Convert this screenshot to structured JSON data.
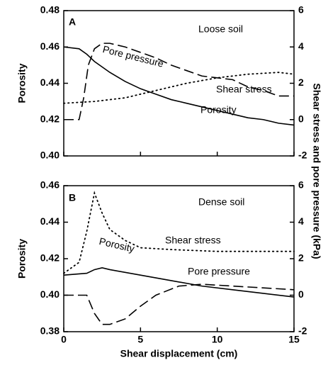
{
  "chart_data": [
    {
      "type": "line",
      "xlim": [
        0,
        15
      ],
      "ylim": [
        0.4,
        0.48
      ],
      "yticks": [
        {
          "value": 0.4,
          "label": "0.40"
        },
        0.42,
        0.44,
        0.46,
        0.48
      ],
      "y2lim": [
        -2,
        6
      ],
      "y2ticks": [
        -2,
        0,
        2,
        4,
        6
      ],
      "ylabel": "Porosity",
      "y2label": "Shear stress and pore pressure (kPa)",
      "annotations": [
        "A",
        "Loose soil",
        "Pore pressure",
        "Shear stress",
        "Porosity"
      ],
      "series": [
        {
          "name": "Porosity",
          "color": "#000000",
          "style": "solid",
          "x": [
            0,
            1,
            1.5,
            2,
            3,
            4,
            5,
            6,
            7,
            8,
            9,
            10,
            11,
            12,
            13,
            14,
            15
          ],
          "values": [
            0.46,
            0.459,
            0.456,
            0.452,
            0.446,
            0.441,
            0.437,
            0.434,
            0.431,
            0.429,
            0.427,
            0.425,
            0.423,
            0.421,
            0.42,
            0.418,
            0.417
          ]
        },
        {
          "name": "Pore pressure",
          "color": "#000000",
          "style": "dashed",
          "axis": "y2",
          "x": [
            0,
            1,
            1.3,
            1.6,
            2,
            2.5,
            3,
            4,
            5,
            6,
            7,
            8,
            9,
            10,
            11,
            12,
            13,
            14,
            15
          ],
          "values": [
            0,
            0,
            1.2,
            3,
            3.9,
            4.2,
            4.2,
            4.0,
            3.7,
            3.4,
            3.0,
            2.7,
            2.4,
            2.3,
            2.2,
            1.8,
            1.6,
            1.3,
            1.3
          ]
        },
        {
          "name": "Shear stress",
          "color": "#000000",
          "style": "dotted",
          "axis": "y2",
          "x": [
            0,
            2,
            4,
            6,
            8,
            10,
            12,
            14,
            15
          ],
          "values": [
            0.9,
            1.0,
            1.2,
            1.6,
            2.0,
            2.3,
            2.5,
            2.6,
            2.5
          ]
        }
      ]
    },
    {
      "type": "line",
      "xlim": [
        0,
        15
      ],
      "xticks": [
        0,
        5,
        10,
        15
      ],
      "xlabel": "Shear displacement (cm)",
      "ylim": [
        0.38,
        0.46
      ],
      "yticks": [
        0.38,
        {
          "value": 0.4,
          "label": "0.40"
        },
        0.42,
        0.44,
        0.46
      ],
      "y2lim": [
        -2,
        6
      ],
      "y2ticks": [
        -2,
        0,
        2,
        4,
        6
      ],
      "ylabel": "Porosity",
      "annotations": [
        "B",
        "Dense soil",
        "Shear stress",
        "Porosity",
        "Pore pressure"
      ],
      "series": [
        {
          "name": "Shear stress",
          "color": "#000000",
          "style": "dotted",
          "axis": "y2",
          "x": [
            0,
            1,
            1.5,
            2,
            2.5,
            3,
            4,
            5,
            7,
            10,
            12,
            15
          ],
          "values": [
            1.2,
            1.8,
            3.5,
            5.6,
            4.5,
            3.6,
            3.0,
            2.6,
            2.5,
            2.4,
            2.4,
            2.4
          ]
        },
        {
          "name": "Porosity",
          "color": "#000000",
          "style": "solid",
          "x": [
            0,
            1.5,
            2,
            2.5,
            3,
            5,
            7,
            9,
            11,
            13,
            15
          ],
          "values": [
            0.411,
            0.412,
            0.414,
            0.415,
            0.414,
            0.411,
            0.408,
            0.405,
            0.403,
            0.401,
            0.399
          ]
        },
        {
          "name": "Pore pressure",
          "color": "#000000",
          "style": "dashed",
          "axis": "y2",
          "x": [
            0,
            1.5,
            2,
            2.5,
            3,
            4,
            5,
            6,
            7.5,
            9,
            11,
            13,
            15
          ],
          "values": [
            0,
            0,
            -1.0,
            -1.6,
            -1.6,
            -1.3,
            -0.6,
            0,
            0.5,
            0.6,
            0.5,
            0.4,
            0.3
          ]
        }
      ]
    }
  ]
}
